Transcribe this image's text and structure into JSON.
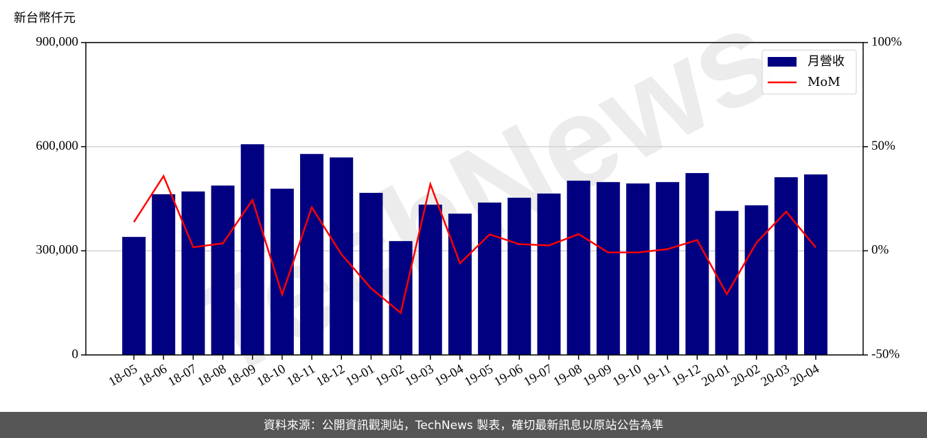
{
  "chart_data": {
    "type": "bar-line",
    "y_label": "新台幣仟元",
    "footer": "資料來源：公開資訊觀測站，TechNews 製表，確切最新訊息以原站公告為準",
    "watermark": "TechNews",
    "categories": [
      "18-05",
      "18-06",
      "18-07",
      "18-08",
      "18-09",
      "18-10",
      "18-11",
      "18-12",
      "19-01",
      "19-02",
      "19-03",
      "19-04",
      "19-05",
      "19-06",
      "19-07",
      "19-08",
      "19-09",
      "19-10",
      "19-11",
      "19-12",
      "20-01",
      "20-02",
      "20-03",
      "20-04"
    ],
    "series": [
      {
        "name": "月營收",
        "color": "#000080",
        "type": "bar",
        "values": [
          340000,
          463000,
          471000,
          488000,
          607000,
          479000,
          579000,
          569000,
          467000,
          328000,
          433000,
          407000,
          439000,
          453000,
          465000,
          502000,
          498000,
          494000,
          498000,
          524000,
          415000,
          431000,
          512000,
          520000
        ]
      },
      {
        "name": "MoM",
        "color": "#ff0000",
        "type": "line",
        "axis": "y2",
        "values": [
          13.8,
          35.9,
          1.7,
          3.6,
          24.4,
          -21,
          20.9,
          -1.7,
          -18,
          -29.8,
          32,
          -6,
          7.9,
          3.2,
          2.6,
          8,
          -0.8,
          -0.8,
          0.8,
          5.2,
          -20.8,
          3.9,
          18.8,
          1.6
        ]
      }
    ],
    "ylim": [
      0,
      900000
    ],
    "yticks": [
      0,
      {
        "value": 300000,
        "label": "300,000"
      },
      {
        "value": 600000,
        "label": "600,000"
      },
      {
        "value": 900000,
        "label": "900,000"
      }
    ],
    "y2lim": [
      -50,
      100
    ],
    "y2ticks": [
      {
        "value": -50,
        "label": "-50%"
      },
      {
        "value": 0,
        "label": "0%"
      },
      {
        "value": 50,
        "label": "50%"
      },
      {
        "value": 100,
        "label": "100%"
      }
    ],
    "grid": true,
    "legend": "upper right"
  }
}
